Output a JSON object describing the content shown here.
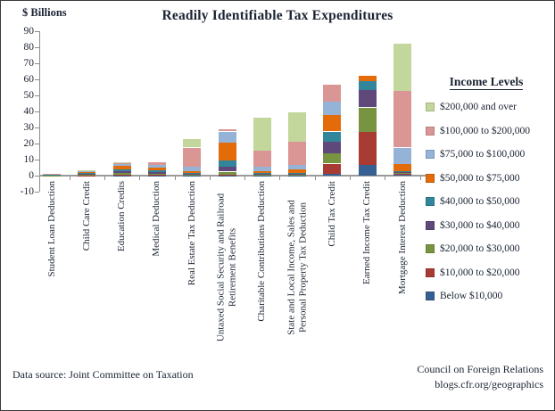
{
  "figure": {
    "footer_left": "Data source: Joint Committee on Taxation",
    "footer_right_line1": "Council on Foreign Relations",
    "footer_right_line2": "blogs.cfr.org/geographics"
  },
  "chart_data": {
    "type": "bar",
    "stacked": true,
    "title": "Readily Identifiable Tax Expenditures",
    "ylabel": "$ Billions",
    "ylim": [
      -10,
      90
    ],
    "ytick_step": 10,
    "grid": false,
    "legend_position": "right",
    "legend_title": "Income Levels",
    "categories": [
      "Student Loan Deduction",
      "Child Care Credit",
      "Education Credits",
      "Medical Deduction",
      "Real Estate Tax Deduction",
      "Untaxed Social Security and Railroad Retirement Benefits",
      "Charitable Contributions Deduction",
      "State and Local Income, Sales and Personal Property Tax Deduction",
      "Child Tax Credit",
      "Earned Income Tax Credit",
      "Mortgage Interest Deduction"
    ],
    "category_display_lines": [
      [
        "Student Loan Deduction"
      ],
      [
        "Child Care Credit"
      ],
      [
        "Education Credits"
      ],
      [
        "Medical Deduction"
      ],
      [
        "Real Estate Tax Deduction"
      ],
      [
        "Untaxed Social Security and Railroad",
        "Retirement Benefits"
      ],
      [
        "Charitable Contributions Deduction"
      ],
      [
        "State and Local Income, Sales and",
        "Personal Property Tax Deduction"
      ],
      [
        "Child Tax Credit"
      ],
      [
        "Earned Income Tax Credit"
      ],
      [
        "Mortgage Interest Deduction"
      ]
    ],
    "series": [
      {
        "name": "Below $10,000",
        "color": "#366092",
        "values": [
          0,
          0,
          0.1,
          0.1,
          0.1,
          0.1,
          0.1,
          0.1,
          1.0,
          6.5,
          0.7
        ]
      },
      {
        "name": "$10,000 to $20,000",
        "color": "#a83b33",
        "values": [
          0.1,
          0.1,
          0.5,
          0.4,
          0.2,
          0.4,
          0.2,
          0.2,
          6.5,
          20.5,
          0.3
        ]
      },
      {
        "name": "$20,000 to $30,000",
        "color": "#789440",
        "values": [
          0.1,
          0.3,
          1.0,
          0.8,
          0.3,
          2.0,
          0.3,
          0.3,
          6.5,
          15.5,
          0.5
        ]
      },
      {
        "name": "$30,000 to $40,000",
        "color": "#5f497a",
        "values": [
          0.2,
          0.5,
          1.2,
          1.0,
          0.4,
          3.0,
          0.4,
          0.5,
          7.0,
          11.0,
          0.7
        ]
      },
      {
        "name": "$40,000 to $50,000",
        "color": "#31869b",
        "values": [
          0.2,
          0.5,
          1.2,
          1.0,
          0.5,
          4.0,
          0.5,
          0.7,
          6.5,
          5.5,
          0.8
        ]
      },
      {
        "name": "$50,000 to $75,000",
        "color": "#e36b09",
        "values": [
          0.3,
          1.0,
          2.0,
          1.7,
          1.5,
          11.0,
          1.5,
          2.0,
          10.5,
          3.0,
          4.5
        ]
      },
      {
        "name": "$75,000 to $100,000",
        "color": "#95b3d7",
        "values": [
          0.2,
          0.5,
          1.1,
          1.5,
          2.3,
          7.0,
          2.5,
          2.7,
          8.0,
          0,
          10.0
        ]
      },
      {
        "name": "$100,000 to $200,000",
        "color": "#d99694",
        "values": [
          0.2,
          0.5,
          1.0,
          2.0,
          12.2,
          1.5,
          10.0,
          14.5,
          10.5,
          0,
          35.5
        ]
      },
      {
        "name": "$200,000 and over",
        "color": "#c3d69b",
        "values": [
          0,
          0.1,
          0.1,
          0,
          5.5,
          0,
          20.5,
          18.5,
          0,
          0,
          29.0
        ]
      }
    ]
  }
}
